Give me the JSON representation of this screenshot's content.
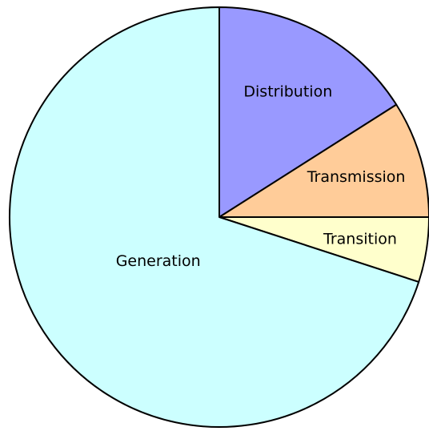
{
  "chart_data": {
    "type": "pie",
    "categories": [
      "Distribution",
      "Transmission",
      "Transition",
      "Generation"
    ],
    "values": [
      16,
      9,
      5,
      70
    ],
    "colors": [
      "#9999ff",
      "#ffcc99",
      "#ffffcc",
      "#ccffff"
    ]
  }
}
